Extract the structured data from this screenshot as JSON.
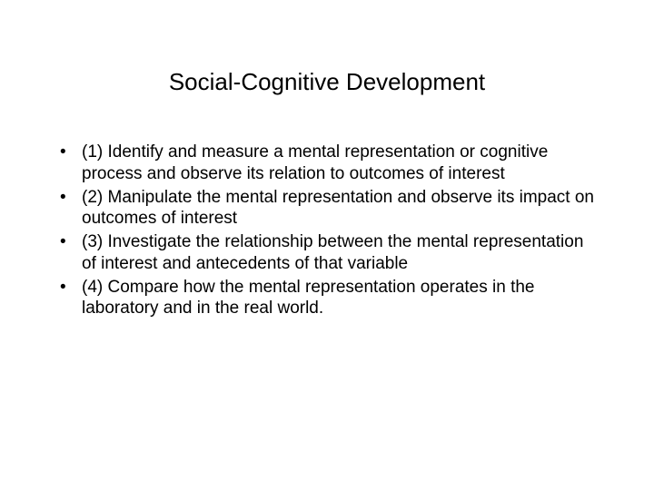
{
  "title": "Social-Cognitive Development",
  "bullets": {
    "item1": "(1) Identify and measure a mental representation or cognitive process and observe its relation to outcomes of interest",
    "item2": " (2) Manipulate the mental representation and observe its impact on outcomes of interest",
    "item3": "(3) Investigate the relationship between the mental representation of interest and antecedents of that variable",
    "item4": "(4) Compare how the mental representation operates in the laboratory and in the real world."
  },
  "colors": {
    "background": "#ffffff",
    "text": "#000000"
  },
  "typography": {
    "title_fontsize": 26,
    "body_fontsize": 19,
    "font_family": "Arial"
  }
}
